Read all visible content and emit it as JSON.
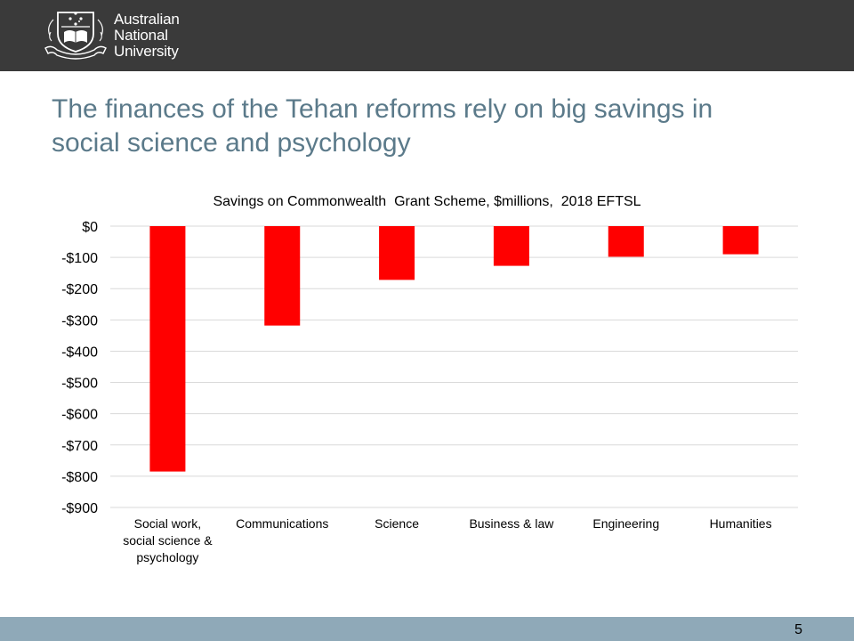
{
  "header": {
    "logo": {
      "line1": "Australian",
      "line2": "National",
      "line3": "University",
      "crest_icon": "anu-crest-icon"
    }
  },
  "slide": {
    "title_line1": "The finances of the Tehan reforms rely on big savings in",
    "title_line2": "social science and psychology"
  },
  "chart_data": {
    "type": "bar",
    "title": "Savings on Commonwealth  Grant Scheme, $millions,  2018 EFTSL",
    "categories": [
      [
        "Social work,",
        "social science &",
        "psychology"
      ],
      [
        "Communications"
      ],
      [
        "Science"
      ],
      [
        "Business & law"
      ],
      [
        "Engineering"
      ],
      [
        "Humanities"
      ]
    ],
    "values": [
      -785,
      -318,
      -172,
      -127,
      -98,
      -90
    ],
    "ylim": [
      -900,
      0
    ],
    "yticks": [
      0,
      -100,
      -200,
      -300,
      -400,
      -500,
      -600,
      -700,
      -800,
      -900
    ],
    "ytick_labels": [
      "$0",
      "-$100",
      "-$200",
      "-$300",
      "-$400",
      "-$500",
      "-$600",
      "-$700",
      "-$800",
      "-$900"
    ],
    "xlabel": "",
    "ylabel": "",
    "grid": true,
    "legend": false,
    "bar_color": "#ff0000"
  },
  "footer": {
    "page_number": "5"
  },
  "colors": {
    "header_bg": "#3a3a3a",
    "title_color": "#5b7a8a",
    "footer_bg": "#8fa9b8",
    "bar": "#ff0000"
  }
}
